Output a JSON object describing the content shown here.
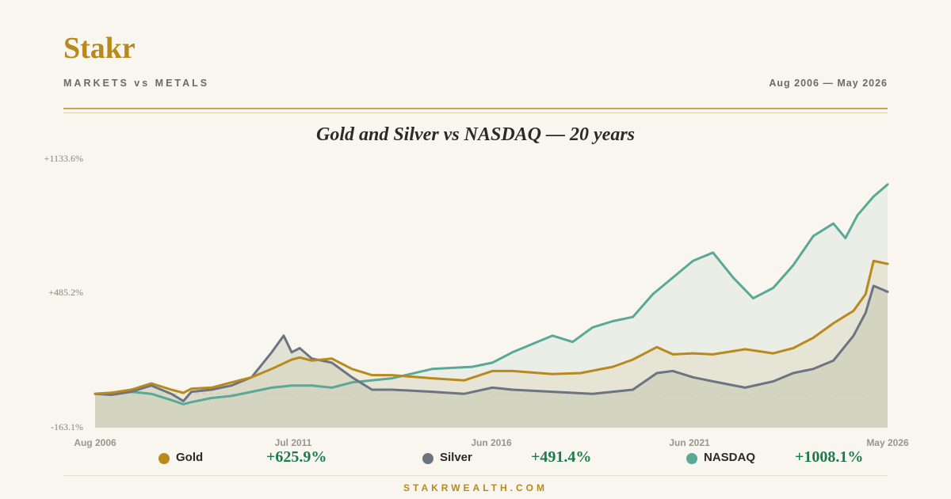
{
  "brand": "Stakr",
  "subtitle": "MARKETS vs METALS",
  "date_range": "Aug 2006 — May 2026",
  "footer": "STAKRWEALTH.COM",
  "colors": {
    "gold": "#b8891c",
    "silver": "#6b7480",
    "nasdaq": "#5aa898",
    "positive": "#1f7a4a"
  },
  "legend": [
    {
      "name": "Gold",
      "value": "+625.9%"
    },
    {
      "name": "Silver",
      "value": "+491.4%"
    },
    {
      "name": "NASDAQ",
      "value": "+1008.1%"
    }
  ],
  "chart_data": {
    "type": "line",
    "title": "Gold and Silver vs NASDAQ — 20 years",
    "y_unit": "% change",
    "ylim": [
      -163.1,
      1133.6
    ],
    "y_tick_labels": [
      "+1133.6%",
      "+485.2%",
      "-163.1%"
    ],
    "y_ticks": [
      1133.6,
      485.2,
      -163.1
    ],
    "xlim": [
      2006.6,
      2026.35
    ],
    "x_tick_labels": [
      "Aug 2006",
      "Jul 2011",
      "Jun 2016",
      "Jun 2021",
      "May 2026"
    ],
    "x_ticks": [
      2006.6,
      2011.5,
      2016.4,
      2021.4,
      2026.35
    ],
    "grid": false,
    "baseline": 0,
    "legend_position": "bottom",
    "series": [
      {
        "name": "Gold",
        "final": "+625.9%",
        "x": [
          2006.6,
          2007.0,
          2007.5,
          2008.0,
          2008.5,
          2008.8,
          2009.0,
          2009.5,
          2010.0,
          2010.5,
          2011.0,
          2011.5,
          2011.7,
          2012.0,
          2012.5,
          2013.0,
          2013.5,
          2014.0,
          2015.0,
          2015.8,
          2016.5,
          2017.0,
          2018.0,
          2018.7,
          2019.5,
          2020.0,
          2020.6,
          2021.0,
          2021.5,
          2022.0,
          2022.8,
          2023.5,
          2024.0,
          2024.5,
          2025.0,
          2025.5,
          2025.8,
          2026.0,
          2026.35
        ],
        "y": [
          0,
          5,
          20,
          50,
          20,
          5,
          25,
          30,
          55,
          80,
          120,
          165,
          175,
          160,
          170,
          120,
          90,
          90,
          75,
          65,
          110,
          110,
          95,
          100,
          130,
          165,
          225,
          190,
          195,
          190,
          215,
          195,
          220,
          270,
          340,
          400,
          480,
          640,
          625.9
        ]
      },
      {
        "name": "Silver",
        "final": "+491.4%",
        "x": [
          2006.6,
          2007.0,
          2007.5,
          2008.0,
          2008.5,
          2008.8,
          2009.0,
          2009.5,
          2010.0,
          2010.5,
          2011.0,
          2011.3,
          2011.5,
          2011.7,
          2012.0,
          2012.5,
          2013.0,
          2013.5,
          2014.0,
          2015.0,
          2015.8,
          2016.5,
          2017.0,
          2018.0,
          2019.0,
          2019.5,
          2020.0,
          2020.6,
          2021.0,
          2021.5,
          2022.0,
          2022.8,
          2023.5,
          2024.0,
          2024.5,
          2025.0,
          2025.5,
          2025.8,
          2026.0,
          2026.35
        ],
        "y": [
          0,
          -5,
          10,
          40,
          0,
          -35,
          10,
          20,
          40,
          80,
          200,
          280,
          200,
          220,
          170,
          150,
          80,
          20,
          20,
          10,
          0,
          30,
          20,
          10,
          0,
          10,
          20,
          100,
          110,
          80,
          60,
          30,
          60,
          100,
          120,
          160,
          280,
          390,
          520,
          491.4
        ]
      },
      {
        "name": "NASDAQ",
        "final": "+1008.1%",
        "x": [
          2006.6,
          2007.0,
          2007.5,
          2008.0,
          2008.5,
          2008.8,
          2009.0,
          2009.5,
          2010.0,
          2010.5,
          2011.0,
          2011.5,
          2012.0,
          2012.5,
          2013.0,
          2014.0,
          2015.0,
          2016.0,
          2016.5,
          2017.0,
          2017.5,
          2018.0,
          2018.5,
          2019.0,
          2019.5,
          2020.0,
          2020.5,
          2021.0,
          2021.5,
          2022.0,
          2022.5,
          2023.0,
          2023.5,
          2024.0,
          2024.5,
          2025.0,
          2025.3,
          2025.6,
          2026.0,
          2026.35
        ],
        "y": [
          0,
          5,
          10,
          0,
          -30,
          -50,
          -40,
          -20,
          -10,
          10,
          30,
          40,
          40,
          30,
          55,
          75,
          120,
          130,
          150,
          200,
          240,
          280,
          250,
          320,
          350,
          370,
          480,
          560,
          640,
          680,
          560,
          460,
          510,
          620,
          760,
          820,
          750,
          860,
          950,
          1008.1
        ]
      }
    ]
  }
}
